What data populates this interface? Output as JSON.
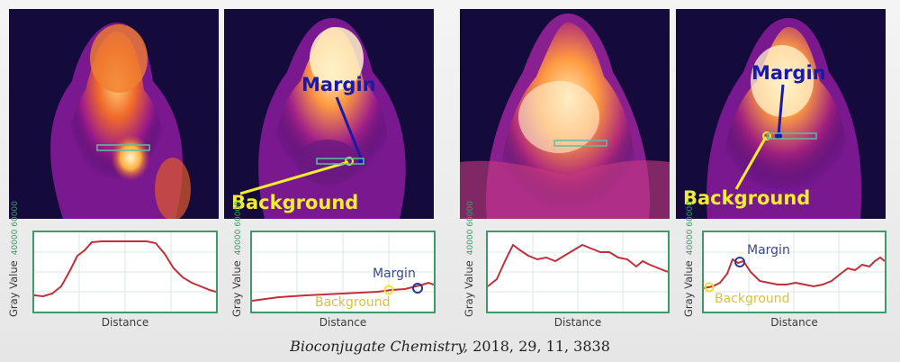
{
  "panels": [
    {
      "id": "p1",
      "image_labels": {},
      "plot": {
        "ylabel": "Gray Value",
        "yticks": [
          "40000",
          "60000"
        ],
        "xlabel": "Distance",
        "annotations": {}
      }
    },
    {
      "id": "p2",
      "image_labels": {
        "margin": "Margin",
        "background": "Background"
      },
      "plot": {
        "ylabel": "Gray Value",
        "yticks": [
          "40000",
          "60000"
        ],
        "xlabel": "Distance",
        "annotations": {
          "margin": "Margin",
          "background": "Background"
        }
      }
    },
    {
      "id": "p3",
      "image_labels": {},
      "plot": {
        "ylabel": "Gray Value",
        "yticks": [
          "40000",
          "60000"
        ],
        "xlabel": "Distance",
        "annotations": {}
      }
    },
    {
      "id": "p4",
      "image_labels": {
        "margin": "Margin",
        "background": "Background"
      },
      "plot": {
        "ylabel": "Gray Value",
        "yticks": [
          "40000",
          "60000"
        ],
        "xlabel": "Distance",
        "annotations": {
          "margin": "Margin",
          "background": "Background"
        }
      }
    }
  ],
  "citation": {
    "journal": "Bioconjugate Chemistry,",
    "details": " 2018, 29, 11, 3838"
  },
  "colors": {
    "plot_border": "#3f9a6a",
    "curve": "#c0303a",
    "margin_marker": "#2a3aa0",
    "background_marker": "#f0e040"
  }
}
